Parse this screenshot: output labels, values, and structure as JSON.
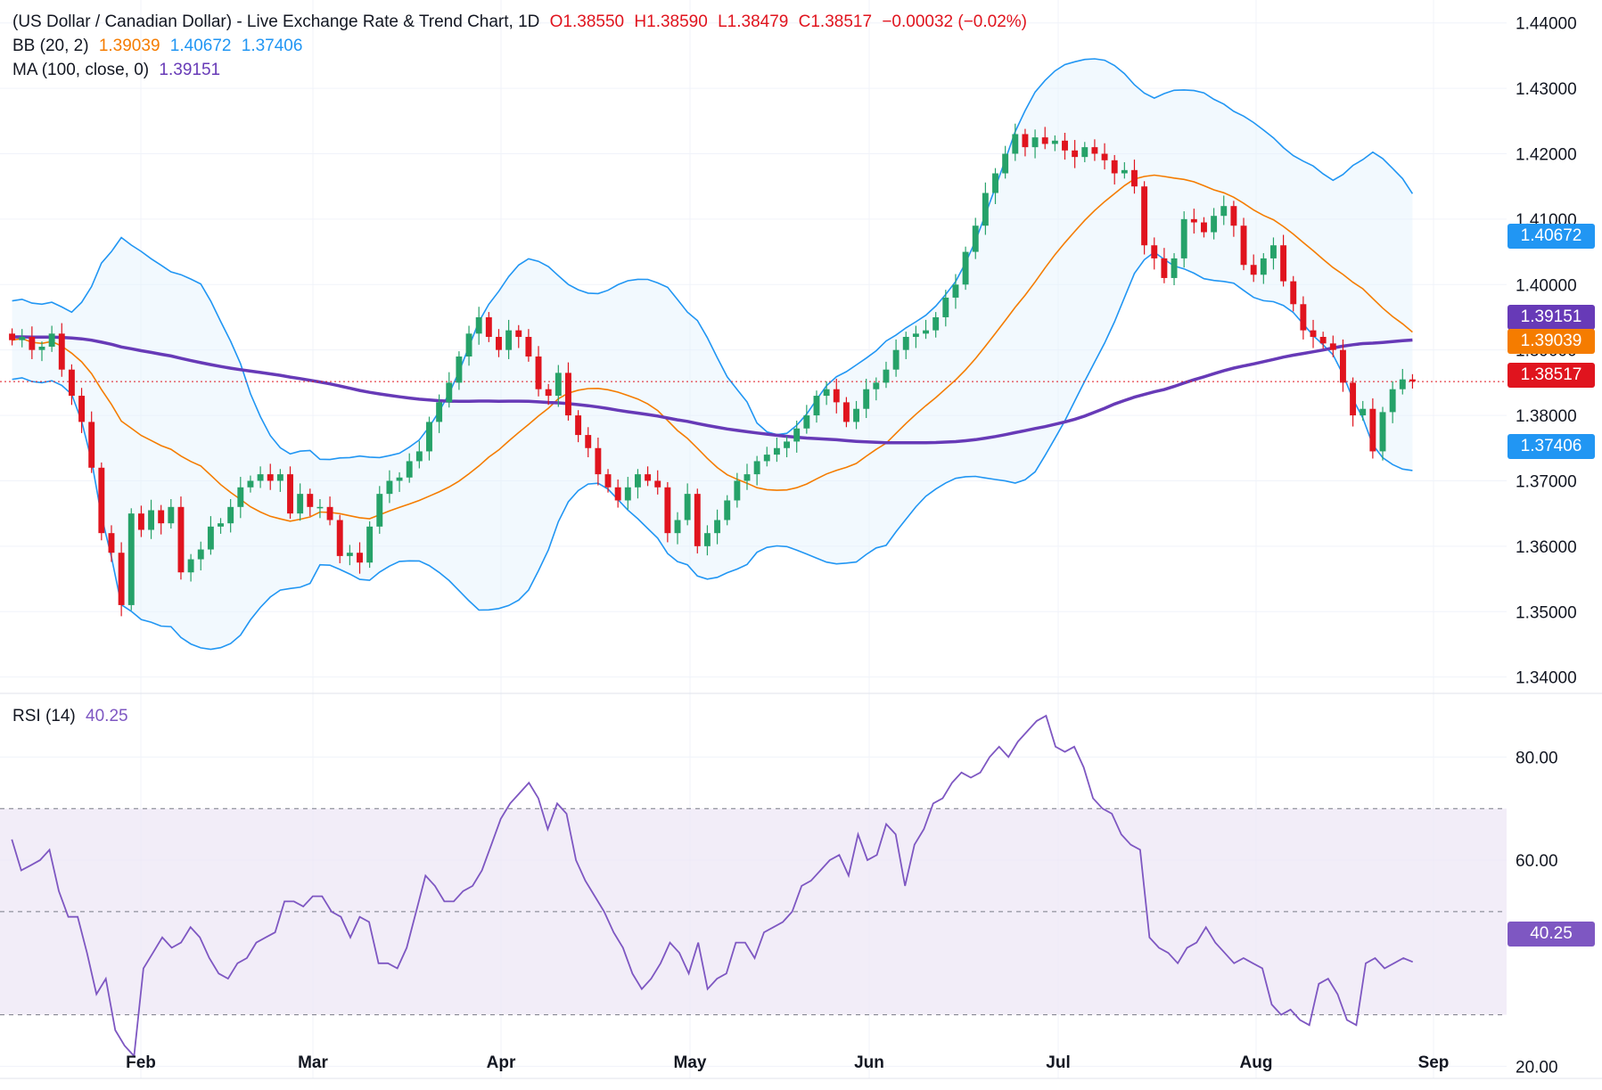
{
  "legend": {
    "title": "(US Dollar / Canadian Dollar) - Live Exchange Rate & Trend Chart, 1D",
    "open": "O1.38550",
    "high": "H1.38590",
    "low": "L1.38479",
    "close": "C1.38517",
    "change": "−0.00032 (−0.02%)",
    "bb_label": "BB (20, 2)",
    "bb_mid": "1.39039",
    "bb_upper": "1.40672",
    "bb_lower": "1.37406",
    "ma_label": "MA (100, close, 0)",
    "ma_value": "1.39151",
    "rsi_label": "RSI (14)",
    "rsi_value": "40.25"
  },
  "price_tags": {
    "upper": "1.40672",
    "ma": "1.39151",
    "mid": "1.39039",
    "last": "1.38517",
    "lower": "1.37406",
    "rsi": "40.25"
  },
  "colors": {
    "up": "#26a269",
    "down": "#e0141e",
    "bb_band": "#2196f3",
    "bb_mid": "#f57c00",
    "ma": "#673ab7",
    "rsi": "#7e57c2",
    "rsi_fill": "#ede7f6",
    "last_price": "#e0141e"
  },
  "chart_data": [
    {
      "type": "candlestick",
      "title": "(US Dollar / Canadian Dollar) - Live Exchange Rate & Trend Chart, 1D",
      "y_ticks": [
        "1.44000",
        "1.43000",
        "1.42000",
        "1.41000",
        "1.40000",
        "1.39000",
        "1.38000",
        "1.37000",
        "1.36000",
        "1.35000",
        "1.34000"
      ],
      "ylim": [
        1.3375,
        1.4435
      ],
      "x_ticks": [
        "Feb",
        "Mar",
        "Apr",
        "May",
        "Jun",
        "Jul",
        "Aug",
        "Sep"
      ],
      "grid": true,
      "bars_per_day": "1D",
      "close_series": [
        1.3915,
        1.392,
        1.39,
        1.3905,
        1.3925,
        1.387,
        1.383,
        1.379,
        1.372,
        1.362,
        1.359,
        1.351,
        1.365,
        1.3625,
        1.3655,
        1.3635,
        1.366,
        1.356,
        1.358,
        1.3595,
        1.363,
        1.3635,
        1.366,
        1.369,
        1.37,
        1.371,
        1.37,
        1.371,
        1.365,
        1.368,
        1.366,
        1.366,
        1.364,
        1.3585,
        1.359,
        1.3575,
        1.363,
        1.368,
        1.37,
        1.3705,
        1.373,
        1.3745,
        1.379,
        1.382,
        1.385,
        1.389,
        1.3925,
        1.395,
        1.392,
        1.39,
        1.393,
        1.392,
        1.389,
        1.384,
        1.383,
        1.3865,
        1.38,
        1.377,
        1.375,
        1.371,
        1.369,
        1.367,
        1.369,
        1.371,
        1.37,
        1.369,
        1.362,
        1.364,
        1.368,
        1.36,
        1.362,
        1.364,
        1.367,
        1.37,
        1.371,
        1.373,
        1.374,
        1.375,
        1.376,
        1.378,
        1.38,
        1.383,
        1.384,
        1.382,
        1.379,
        1.381,
        1.384,
        1.385,
        1.387,
        1.39,
        1.392,
        1.3925,
        1.393,
        1.395,
        1.398,
        1.4,
        1.405,
        1.409,
        1.414,
        1.417,
        1.42,
        1.423,
        1.421,
        1.4225,
        1.4215,
        1.422,
        1.4205,
        1.4195,
        1.421,
        1.42,
        1.419,
        1.417,
        1.4175,
        1.415,
        1.406,
        1.404,
        1.401,
        1.404,
        1.41,
        1.4095,
        1.408,
        1.4105,
        1.412,
        1.409,
        1.403,
        1.4015,
        1.404,
        1.406,
        1.4005,
        1.397,
        1.393,
        1.392,
        1.391,
        1.39,
        1.385,
        1.38,
        1.381,
        1.3745,
        1.3805,
        1.384,
        1.3855,
        1.3852
      ],
      "series": [
        {
          "name": "BB (20, 2)",
          "upper_last": 1.40672,
          "basis_last": 1.39039,
          "lower_last": 1.37406
        },
        {
          "name": "MA (100, close, 0)",
          "last": 1.39151
        }
      ],
      "ohlc_last": {
        "open": 1.3855,
        "high": 1.3859,
        "low": 1.38479,
        "close": 1.38517
      }
    },
    {
      "type": "line",
      "title": "RSI (14)",
      "y_ticks": [
        "80.00",
        "60.00",
        "20.00"
      ],
      "ylim": [
        18,
        92
      ],
      "bands": [
        30,
        50,
        70
      ],
      "last": 40.25,
      "values": [
        64,
        58,
        59,
        60,
        62,
        54,
        49,
        49,
        42,
        34,
        37,
        27,
        24,
        22,
        39,
        42,
        45,
        43,
        44,
        47,
        45,
        41,
        38,
        37,
        40,
        41,
        44,
        45,
        46,
        52,
        52,
        51,
        53,
        53,
        50,
        49,
        45,
        49,
        48,
        40,
        40,
        39,
        43,
        50,
        57,
        55,
        52,
        52,
        54,
        55,
        58,
        63,
        68,
        71,
        73,
        75,
        72,
        66,
        71,
        69,
        60,
        56,
        53,
        50,
        46,
        43,
        38,
        35,
        37,
        40,
        44,
        42,
        38,
        44,
        35,
        37,
        38,
        44,
        44,
        41,
        46,
        47,
        48,
        50,
        55,
        56,
        58,
        60,
        61,
        57,
        65,
        60,
        61,
        67,
        65,
        55,
        63,
        66,
        71,
        72,
        75,
        77,
        76,
        77,
        80,
        82,
        80,
        83,
        85,
        87,
        88,
        82,
        81,
        82,
        78,
        72,
        70,
        69,
        65,
        63,
        62,
        45,
        43,
        42,
        40,
        43,
        44,
        47,
        44,
        42,
        40,
        41,
        40,
        39,
        32,
        30,
        31,
        29,
        28,
        36,
        37,
        34,
        29,
        28,
        40,
        41,
        39,
        40,
        41,
        40.25
      ]
    }
  ]
}
